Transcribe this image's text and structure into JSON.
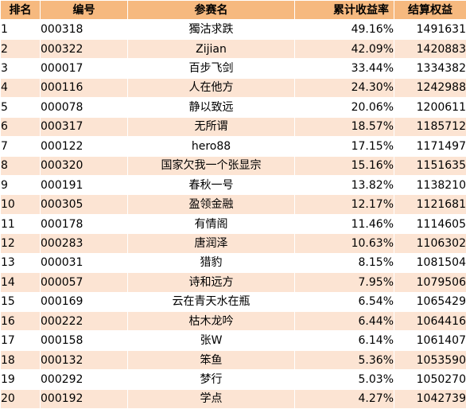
{
  "headers": {
    "rank": "排名",
    "code": "编号",
    "name": "参赛名",
    "return": "累计收益率",
    "equity": "结算权益"
  },
  "rows": [
    {
      "rank": "1",
      "code": "000318",
      "name": "獨沽求跌",
      "return": "49.16%",
      "equity": "1491631"
    },
    {
      "rank": "2",
      "code": "000322",
      "name": "Zijian",
      "return": "42.09%",
      "equity": "1420883"
    },
    {
      "rank": "3",
      "code": "000017",
      "name": "百步飞剑",
      "return": "33.44%",
      "equity": "1334382"
    },
    {
      "rank": "4",
      "code": "000116",
      "name": "人在他方",
      "return": "24.30%",
      "equity": "1242988"
    },
    {
      "rank": "5",
      "code": "000078",
      "name": "静以致远",
      "return": "20.06%",
      "equity": "1200611"
    },
    {
      "rank": "6",
      "code": "000317",
      "name": "无所谓",
      "return": "18.57%",
      "equity": "1185712"
    },
    {
      "rank": "7",
      "code": "000122",
      "name": "hero88",
      "return": "17.15%",
      "equity": "1171497"
    },
    {
      "rank": "8",
      "code": "000320",
      "name": "国家欠我一个张显宗",
      "return": "15.16%",
      "equity": "1151635"
    },
    {
      "rank": "9",
      "code": "000191",
      "name": "春秋一号",
      "return": "13.82%",
      "equity": "1138210"
    },
    {
      "rank": "10",
      "code": "000305",
      "name": "盈领金融",
      "return": "12.17%",
      "equity": "1121681"
    },
    {
      "rank": "11",
      "code": "000178",
      "name": "有情阁",
      "return": "11.46%",
      "equity": "1114605"
    },
    {
      "rank": "12",
      "code": "000283",
      "name": "唐润泽",
      "return": "10.63%",
      "equity": "1106302"
    },
    {
      "rank": "13",
      "code": "000031",
      "name": "猎豹",
      "return": "8.15%",
      "equity": "1081504"
    },
    {
      "rank": "14",
      "code": "000057",
      "name": "诗和远方",
      "return": "7.95%",
      "equity": "1079506"
    },
    {
      "rank": "15",
      "code": "000169",
      "name": "云在青天水在瓶",
      "return": "6.54%",
      "equity": "1065429"
    },
    {
      "rank": "16",
      "code": "000222",
      "name": "枯木龙吟",
      "return": "6.44%",
      "equity": "1064416"
    },
    {
      "rank": "17",
      "code": "000158",
      "name": "张W",
      "return": "6.14%",
      "equity": "1061407"
    },
    {
      "rank": "18",
      "code": "000132",
      "name": "笨鱼",
      "return": "5.36%",
      "equity": "1053590"
    },
    {
      "rank": "19",
      "code": "000292",
      "name": "梦行",
      "return": "5.03%",
      "equity": "1050270"
    },
    {
      "rank": "20",
      "code": "000192",
      "name": "学点",
      "return": "4.27%",
      "equity": "1042739"
    }
  ],
  "colors": {
    "header_bg": "#f6b97f",
    "row_alt_bg": "#fce4d3",
    "row_bg": "#ffffff"
  }
}
